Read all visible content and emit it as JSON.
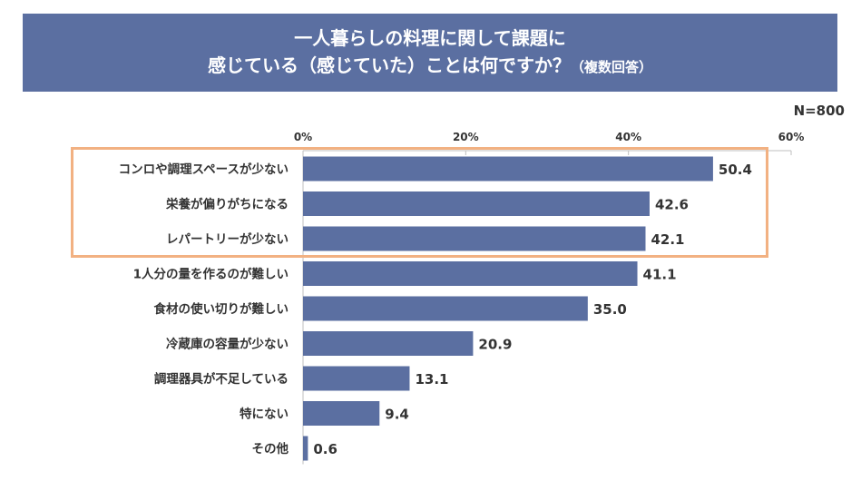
{
  "title": {
    "line1": "一人暮らしの料理に関して課題に",
    "line2_main": "感じている（感じていた）ことは何ですか？",
    "line2_note": "（複数回答）"
  },
  "sample_note": "N=800",
  "colors": {
    "bar": "#5B6FA1",
    "highlight_border": "#F2B182",
    "title_bg": "#5B6FA1"
  },
  "chart_data": {
    "type": "bar",
    "orientation": "horizontal",
    "categories": [
      "コンロや調理スペースが少ない",
      "栄養が偏りがちになる",
      "レパートリーが少ない",
      "1人分の量を作るのが難しい",
      "食材の使い切りが難しい",
      "冷蔵庫の容量が少ない",
      "調理器具が不足している",
      "特にない",
      "その他"
    ],
    "values": [
      50.4,
      42.6,
      42.1,
      41.1,
      35.0,
      20.9,
      13.1,
      9.4,
      0.6
    ],
    "value_labels": [
      "50.4",
      "42.6",
      "42.1",
      "41.1",
      "35.0",
      "20.9",
      "13.1",
      "9.4",
      "0.6"
    ],
    "xlim": [
      0,
      60
    ],
    "xticks": [
      "0%",
      "20%",
      "40%",
      "60%"
    ],
    "xtick_values": [
      0,
      20,
      40,
      60
    ],
    "highlighted_categories": [
      "コンロや調理スペースが少ない",
      "栄養が偏りがちになる",
      "レパートリーが少ない"
    ],
    "legend": "none",
    "grid": false
  }
}
